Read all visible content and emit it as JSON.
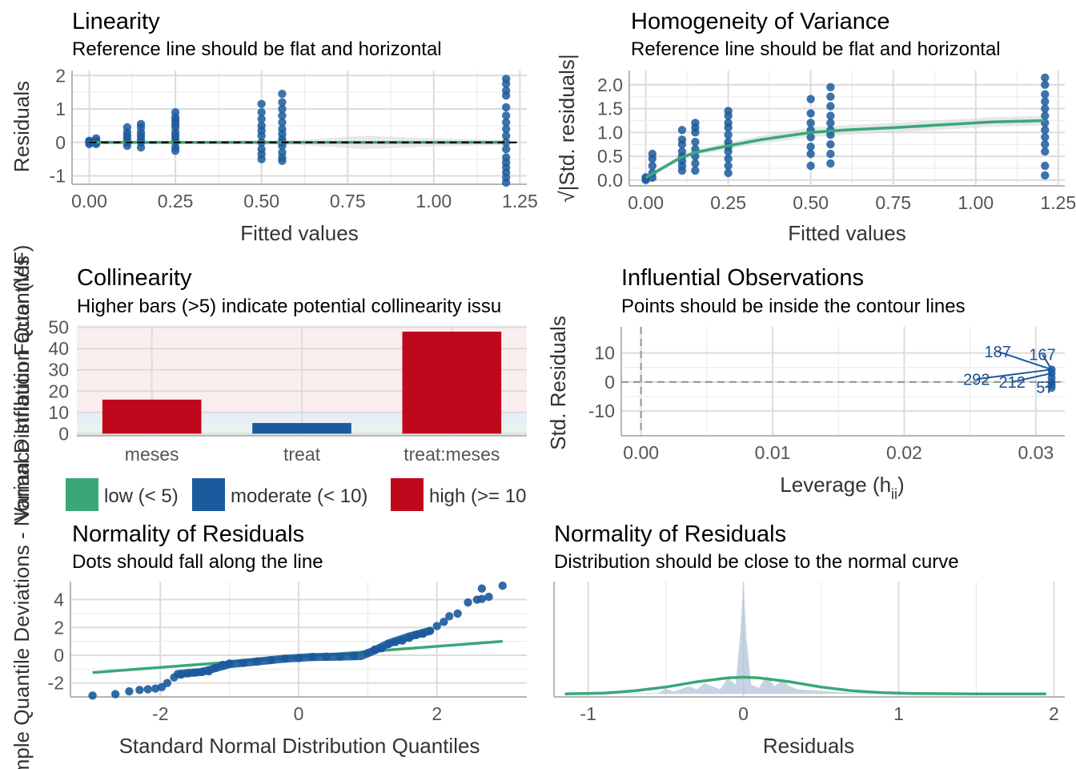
{
  "colors": {
    "point": "#1b5a9c",
    "green": "#3aa776",
    "blue": "#1b5a9c",
    "red": "#c0081c",
    "ribbon": "#d7dbdb",
    "density": "#b3c4d9"
  },
  "chart_data": [
    {
      "id": "linearity",
      "type": "scatter",
      "title": "Linearity",
      "subtitle": "Reference line should be flat and horizontal",
      "xlabel": "Fitted values",
      "ylabel": "Residuals",
      "xlim": [
        -0.05,
        1.27
      ],
      "ylim": [
        -1.25,
        2.15
      ],
      "xticks": [
        0.0,
        0.25,
        0.5,
        0.75,
        1.0,
        1.25
      ],
      "xtick_labels": [
        "0.00",
        "0.25",
        "0.50",
        "0.75",
        "1.00",
        "1.25"
      ],
      "yticks": [
        -1,
        0,
        1,
        2
      ],
      "ytick_labels": [
        "-1",
        "0",
        "1",
        "2"
      ],
      "groups": [
        {
          "x": 0.0,
          "y": [
            -0.05,
            0.0,
            0.02,
            0.05
          ]
        },
        {
          "x": 0.02,
          "y": [
            -0.05,
            0.0,
            0.05,
            0.12
          ]
        },
        {
          "x": 0.11,
          "y": [
            -0.1,
            0.0,
            0.1,
            0.2,
            0.3,
            0.45
          ]
        },
        {
          "x": 0.15,
          "y": [
            -0.15,
            0.0,
            0.1,
            0.2,
            0.3,
            0.45,
            0.55
          ]
        },
        {
          "x": 0.25,
          "y": [
            -0.25,
            -0.15,
            0.0,
            0.1,
            0.2,
            0.3,
            0.45,
            0.55,
            0.65,
            0.75,
            0.9
          ]
        },
        {
          "x": 0.5,
          "y": [
            -0.5,
            -0.35,
            -0.2,
            0.0,
            0.2,
            0.35,
            0.5,
            0.7,
            0.9,
            1.15
          ]
        },
        {
          "x": 0.56,
          "y": [
            -0.55,
            -0.45,
            -0.3,
            -0.1,
            0.0,
            0.1,
            0.25,
            0.4,
            0.6,
            0.8,
            1.0,
            1.2,
            1.45
          ]
        },
        {
          "x": 1.21,
          "y": [
            -1.2,
            -1.05,
            -0.9,
            -0.75,
            -0.6,
            -0.45,
            -0.2,
            0.0,
            0.2,
            0.4,
            0.6,
            0.8,
            1.05,
            1.4,
            1.55,
            1.75,
            1.9
          ]
        }
      ],
      "ref_line": {
        "type": "dashed",
        "y": 0
      },
      "smooth": {
        "x": [
          0.0,
          0.25,
          0.5,
          0.75,
          1.0,
          1.21
        ],
        "y": [
          0.0,
          0.0,
          0.0,
          0.0,
          0.0,
          0.0
        ]
      }
    },
    {
      "id": "homogeneity",
      "type": "scatter",
      "title": "Homogeneity of Variance",
      "subtitle": "Reference line should be flat and horizontal",
      "xlabel": "Fitted values",
      "ylabel": "√|Std. residuals|",
      "xlim": [
        -0.05,
        1.27
      ],
      "ylim": [
        -0.12,
        2.3
      ],
      "xticks": [
        0.0,
        0.25,
        0.5,
        0.75,
        1.0,
        1.25
      ],
      "xtick_labels": [
        "0.00",
        "0.25",
        "0.50",
        "0.75",
        "1.00",
        "1.25"
      ],
      "yticks": [
        0.0,
        0.5,
        1.0,
        1.5,
        2.0
      ],
      "ytick_labels": [
        "0.0",
        "0.5",
        "1.0",
        "1.5",
        "2.0"
      ],
      "groups": [
        {
          "x": 0.0,
          "y": [
            0.0,
            0.03,
            0.06
          ]
        },
        {
          "x": 0.02,
          "y": [
            0.05,
            0.15,
            0.3,
            0.45,
            0.55
          ]
        },
        {
          "x": 0.11,
          "y": [
            0.2,
            0.3,
            0.4,
            0.5,
            0.6,
            0.75,
            0.85,
            1.05
          ]
        },
        {
          "x": 0.15,
          "y": [
            0.2,
            0.35,
            0.5,
            0.65,
            0.8,
            1.0,
            1.1,
            1.2
          ]
        },
        {
          "x": 0.25,
          "y": [
            0.15,
            0.3,
            0.45,
            0.6,
            0.7,
            0.8,
            0.95,
            1.1,
            1.2,
            1.35,
            1.45
          ]
        },
        {
          "x": 0.5,
          "y": [
            0.3,
            0.55,
            0.7,
            0.9,
            1.05,
            1.2,
            1.4,
            1.7
          ]
        },
        {
          "x": 0.56,
          "y": [
            0.35,
            0.55,
            0.75,
            0.95,
            1.05,
            1.2,
            1.35,
            1.55,
            1.75,
            1.95
          ]
        },
        {
          "x": 1.21,
          "y": [
            0.1,
            0.3,
            0.6,
            0.75,
            0.9,
            1.05,
            1.2,
            1.35,
            1.5,
            1.65,
            1.8,
            2.0,
            2.15
          ]
        }
      ],
      "smooth": {
        "x": [
          0.0,
          0.05,
          0.1,
          0.15,
          0.2,
          0.25,
          0.35,
          0.5,
          0.6,
          0.75,
          0.9,
          1.05,
          1.21
        ],
        "y": [
          0.05,
          0.25,
          0.45,
          0.58,
          0.65,
          0.72,
          0.85,
          1.0,
          1.05,
          1.1,
          1.16,
          1.22,
          1.25
        ]
      }
    },
    {
      "id": "collinearity",
      "type": "bar",
      "title": "Collinearity",
      "subtitle": "Higher bars (>5) indicate potential collinearity issu",
      "xlabel": "",
      "ylabel": "Variance Inflation Factor (VIF)",
      "ylim": [
        -1,
        51
      ],
      "yticks": [
        0,
        10,
        20,
        30,
        40,
        50
      ],
      "ytick_labels": [
        "0",
        "10",
        "20",
        "30",
        "40",
        "50"
      ],
      "categories": [
        "meses",
        "treat",
        "treat:meses"
      ],
      "values": [
        16,
        5,
        48
      ],
      "bar_levels": [
        "high",
        "moderate",
        "high"
      ],
      "legend": [
        {
          "label": "low (< 5)",
          "color": "#3aa776"
        },
        {
          "label": "moderate (< 10)",
          "color": "#1b5a9c"
        },
        {
          "label": "high (>= 10",
          "color": "#c0081c"
        }
      ]
    },
    {
      "id": "influential",
      "type": "scatter",
      "title": "Influential Observations",
      "subtitle": "Points should be inside the contour lines",
      "xlabel": "Leverage (h",
      "xlabel_sub": "ii",
      "xlabel_close": ")",
      "ylabel": "Std. Residuals",
      "xlim": [
        -0.0015,
        0.0322
      ],
      "ylim": [
        -18.5,
        19
      ],
      "xticks": [
        0.0,
        0.01,
        0.02,
        0.03
      ],
      "xtick_labels": [
        "0.00",
        "0.01",
        "0.02",
        "0.03"
      ],
      "yticks": [
        -10,
        0,
        10
      ],
      "ytick_labels": [
        "-10",
        "0",
        "10"
      ],
      "points": [
        {
          "x": 0.0312,
          "y": -2
        },
        {
          "x": 0.0312,
          "y": 0
        },
        {
          "x": 0.0312,
          "y": 1.5
        },
        {
          "x": 0.0312,
          "y": 3
        },
        {
          "x": 0.0312,
          "y": 4.3
        },
        {
          "x": 0.0312,
          "y": -1
        }
      ],
      "labels": [
        {
          "text": "187",
          "x": 0.0271,
          "y": 10.5,
          "px": 0.0312,
          "py": 4.3
        },
        {
          "text": "167",
          "x": 0.0305,
          "y": 9.5,
          "px": 0.0312,
          "py": 4.3
        },
        {
          "text": "292",
          "x": 0.0255,
          "y": 1.0,
          "px": 0.0312,
          "py": 4.3
        },
        {
          "text": "212",
          "x": 0.0282,
          "y": 0.0,
          "px": 0.0312,
          "py": 3
        },
        {
          "text": "57",
          "x": 0.0307,
          "y": -1.8,
          "px": 0.0312,
          "py": -1
        }
      ]
    },
    {
      "id": "qq",
      "type": "scatter",
      "title": "Normality of Residuals",
      "subtitle": "Dots should fall along the line",
      "xlabel": "Standard Normal Distribution Quantiles",
      "ylabel": "Sample Quantile Deviations - Normal Distribution Quantiles",
      "xlim": [
        -3.3,
        3.3
      ],
      "ylim": [
        -3.0,
        5.3
      ],
      "xticks": [
        -2,
        0,
        2
      ],
      "xtick_labels": [
        "-2",
        "0",
        "2"
      ],
      "yticks": [
        -2,
        0,
        2,
        4
      ],
      "ytick_labels": [
        "-2",
        "0",
        "2",
        "4"
      ],
      "points": [
        {
          "x": -2.98,
          "y": -2.9
        },
        {
          "x": -2.65,
          "y": -2.8
        },
        {
          "x": -2.45,
          "y": -2.6
        },
        {
          "x": -2.3,
          "y": -2.5
        },
        {
          "x": -2.18,
          "y": -2.45
        },
        {
          "x": -2.07,
          "y": -2.4
        },
        {
          "x": -1.98,
          "y": -2.3
        },
        {
          "x": -1.9,
          "y": -2.0
        },
        {
          "x": -1.8,
          "y": -1.6
        },
        {
          "x": -1.7,
          "y": -1.4
        },
        {
          "x": -1.6,
          "y": -1.3
        },
        {
          "x": -1.5,
          "y": -1.25
        },
        {
          "x": -1.4,
          "y": -1.2
        },
        {
          "x": -1.3,
          "y": -1.15
        },
        {
          "x": -1.2,
          "y": -0.9
        },
        {
          "x": -1.1,
          "y": -0.7
        },
        {
          "x": -1.0,
          "y": -0.6
        },
        {
          "x": -0.8,
          "y": -0.55
        },
        {
          "x": -0.6,
          "y": -0.45
        },
        {
          "x": -0.4,
          "y": -0.35
        },
        {
          "x": -0.2,
          "y": -0.25
        },
        {
          "x": 0.0,
          "y": -0.2
        },
        {
          "x": 0.2,
          "y": -0.12
        },
        {
          "x": 0.4,
          "y": -0.1
        },
        {
          "x": 0.6,
          "y": -0.1
        },
        {
          "x": 0.8,
          "y": -0.05
        },
        {
          "x": 1.0,
          "y": 0.15
        },
        {
          "x": 1.1,
          "y": 0.4
        },
        {
          "x": 1.2,
          "y": 0.5
        },
        {
          "x": 1.3,
          "y": 0.8
        },
        {
          "x": 1.4,
          "y": 0.95
        },
        {
          "x": 1.5,
          "y": 1.05
        },
        {
          "x": 1.6,
          "y": 1.25
        },
        {
          "x": 1.7,
          "y": 1.45
        },
        {
          "x": 1.8,
          "y": 1.55
        },
        {
          "x": 1.9,
          "y": 1.75
        },
        {
          "x": 2.0,
          "y": 2.1
        },
        {
          "x": 2.1,
          "y": 2.4
        },
        {
          "x": 2.18,
          "y": 2.8
        },
        {
          "x": 2.3,
          "y": 3.0
        },
        {
          "x": 2.45,
          "y": 3.8
        },
        {
          "x": 2.58,
          "y": 4.0
        },
        {
          "x": 2.65,
          "y": 4.05
        },
        {
          "x": 2.75,
          "y": 4.2
        },
        {
          "x": 2.65,
          "y": 4.8
        },
        {
          "x": 2.95,
          "y": 5.0
        }
      ],
      "ref_line": {
        "x": [
          -2.98,
          2.95
        ],
        "y": [
          -1.25,
          1.0
        ]
      }
    },
    {
      "id": "density",
      "type": "area",
      "title": "Normality of Residuals",
      "subtitle": "Distribution should be close to the normal curve",
      "xlabel": "Residuals",
      "ylabel": "",
      "xlim": [
        -1.22,
        2.07
      ],
      "ylim": [
        -0.2,
        7.4
      ],
      "xticks": [
        -1,
        0,
        1,
        2
      ],
      "xtick_labels": [
        "-1",
        "0",
        "1",
        "2"
      ],
      "density": {
        "x": [
          -1.15,
          -0.55,
          -0.5,
          -0.45,
          -0.35,
          -0.3,
          -0.25,
          -0.15,
          -0.1,
          -0.05,
          -0.02,
          0.0,
          0.02,
          0.05,
          0.1,
          0.15,
          0.2,
          0.25,
          0.3,
          0.35,
          0.5,
          0.7,
          1.95
        ],
        "y": [
          0.0,
          0.05,
          0.35,
          0.15,
          0.5,
          0.3,
          0.7,
          0.3,
          1.05,
          0.6,
          4.0,
          7.3,
          3.5,
          0.6,
          0.4,
          1.2,
          0.5,
          0.9,
          0.5,
          0.3,
          0.2,
          0.05,
          0.0
        ]
      },
      "normal_curve": {
        "x": [
          -1.15,
          -0.9,
          -0.7,
          -0.5,
          -0.3,
          -0.1,
          0.0,
          0.1,
          0.3,
          0.5,
          0.7,
          0.9,
          1.1,
          1.5,
          1.95
        ],
        "y": [
          0.0,
          0.05,
          0.2,
          0.45,
          0.8,
          1.05,
          1.1,
          1.05,
          0.8,
          0.45,
          0.2,
          0.08,
          0.02,
          0.0,
          0.0
        ]
      }
    }
  ]
}
